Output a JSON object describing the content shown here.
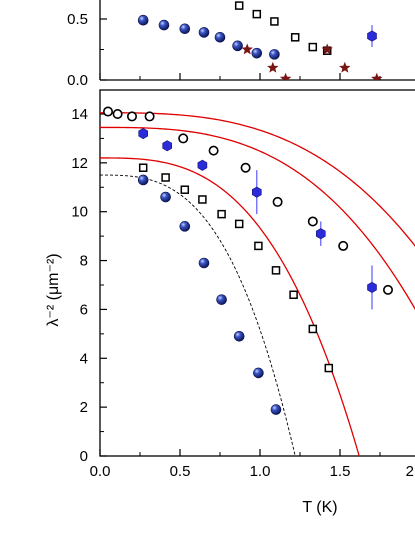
{
  "chart_data": [
    {
      "type": "scatter",
      "title": "",
      "xlabel": "",
      "ylabel": "",
      "xlim": [
        0,
        2.0
      ],
      "ylim": [
        0,
        0.6
      ],
      "x_ticks": [
        0.0,
        0.5,
        1.0,
        1.5,
        2.0
      ],
      "y_tick_labels": [
        "0.0",
        "0.5"
      ],
      "y_tick_values": [
        0.0,
        0.5
      ],
      "grid": false,
      "legend": "none",
      "series": [
        {
          "marker": "navy-sphere",
          "color": "#1d2f86",
          "points": [
            [
              0.27,
              0.49
            ],
            [
              0.4,
              0.45
            ],
            [
              0.53,
              0.42
            ],
            [
              0.65,
              0.39
            ],
            [
              0.75,
              0.35
            ],
            [
              0.86,
              0.28
            ],
            [
              0.98,
              0.22
            ],
            [
              1.09,
              0.21
            ]
          ]
        },
        {
          "marker": "open-square",
          "color": "#000000",
          "points": [
            [
              0.87,
              0.61
            ],
            [
              0.98,
              0.54
            ],
            [
              1.09,
              0.48
            ],
            [
              1.22,
              0.35
            ],
            [
              1.33,
              0.27
            ],
            [
              1.42,
              0.24
            ]
          ]
        },
        {
          "marker": "star",
          "color": "#7a1515",
          "points": [
            [
              0.92,
              0.25
            ],
            [
              1.08,
              0.1
            ],
            [
              1.16,
              0.01
            ],
            [
              1.42,
              0.25
            ],
            [
              1.53,
              0.1
            ],
            [
              1.73,
              0.01
            ]
          ]
        },
        {
          "marker": "blue-hexagon",
          "color": "#2b2bd9",
          "points": [
            [
              1.7,
              0.36
            ]
          ],
          "y_error": [
            0.09
          ]
        }
      ]
    },
    {
      "type": "scatter",
      "title": "",
      "xlabel": "T (K)",
      "ylabel": "λ⁻² (μm⁻²)",
      "xlim": [
        0,
        2.0
      ],
      "ylim": [
        0,
        15
      ],
      "x_ticks": [
        0.0,
        0.5,
        1.0,
        1.5,
        2.0
      ],
      "x_tick_labels": [
        "0.0",
        "0.5",
        "1.0",
        "1.5",
        "2"
      ],
      "y_ticks": [
        0,
        2,
        4,
        6,
        8,
        10,
        12,
        14
      ],
      "grid": false,
      "legend": "none",
      "series": [
        {
          "marker": "open-circle",
          "color": "#000000",
          "points": [
            [
              0.05,
              14.1
            ],
            [
              0.11,
              14.0
            ],
            [
              0.2,
              13.9
            ],
            [
              0.31,
              13.9
            ],
            [
              0.52,
              13.0
            ],
            [
              0.71,
              12.5
            ],
            [
              0.91,
              11.8
            ],
            [
              1.11,
              10.4
            ],
            [
              1.33,
              9.6
            ],
            [
              1.52,
              8.6
            ],
            [
              1.8,
              6.8
            ]
          ]
        },
        {
          "marker": "blue-hexagon",
          "color": "#2b2bd9",
          "points": [
            [
              0.27,
              13.2
            ],
            [
              0.42,
              12.7
            ],
            [
              0.64,
              11.9
            ],
            [
              0.98,
              10.8
            ],
            [
              1.38,
              9.1
            ],
            [
              1.7,
              6.9
            ]
          ],
          "y_error": [
            0,
            0,
            0,
            0.9,
            0.5,
            0.9
          ]
        },
        {
          "marker": "open-square",
          "color": "#000000",
          "points": [
            [
              0.27,
              11.8
            ],
            [
              0.41,
              11.4
            ],
            [
              0.53,
              10.9
            ],
            [
              0.64,
              10.5
            ],
            [
              0.76,
              9.9
            ],
            [
              0.87,
              9.5
            ],
            [
              0.99,
              8.6
            ],
            [
              1.1,
              7.6
            ],
            [
              1.21,
              6.6
            ],
            [
              1.33,
              5.2
            ],
            [
              1.43,
              3.6
            ]
          ]
        },
        {
          "marker": "navy-sphere",
          "color": "#1d2f86",
          "points": [
            [
              0.27,
              11.3
            ],
            [
              0.41,
              10.6
            ],
            [
              0.53,
              9.4
            ],
            [
              0.65,
              7.9
            ],
            [
              0.76,
              6.4
            ],
            [
              0.87,
              4.9
            ],
            [
              0.99,
              3.4
            ],
            [
              1.1,
              1.9
            ]
          ]
        }
      ],
      "fits": [
        {
          "style": "solid",
          "color": "#e00000",
          "lambda0": 14.05,
          "tc": 2.7
        },
        {
          "style": "solid",
          "color": "#e00000",
          "lambda0": 13.45,
          "tc": 2.4
        },
        {
          "style": "solid",
          "color": "#e00000",
          "lambda0": 12.2,
          "tc": 1.62
        },
        {
          "style": "dashed",
          "color": "#000000",
          "lambda0": 11.5,
          "tc": 1.22
        }
      ]
    }
  ]
}
